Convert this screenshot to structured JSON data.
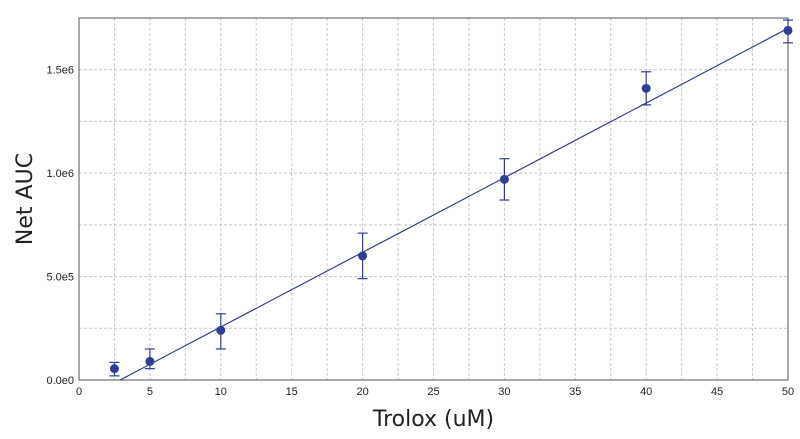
{
  "colors": {
    "series": "#2e3f93",
    "grid": "#c8c8c8",
    "axis": "#555555",
    "text": "#222222",
    "background": "#ffffff"
  },
  "chart_data": {
    "type": "scatter",
    "title": "",
    "xlabel": "Trolox (uM)",
    "ylabel": "Net AUC",
    "xlim": [
      0,
      50
    ],
    "ylim": [
      0,
      1750000
    ],
    "x_ticks": [
      0,
      5,
      10,
      15,
      20,
      25,
      30,
      35,
      40,
      45,
      50
    ],
    "x_tick_labels": [
      "0",
      "5",
      "10",
      "15",
      "20",
      "25",
      "30",
      "35",
      "40",
      "45",
      "50"
    ],
    "y_ticks": [
      0,
      500000,
      1000000,
      1500000
    ],
    "y_tick_labels": [
      "0.0e0",
      "5.0e5",
      "1.0e6",
      "1.5e6"
    ],
    "x_minor_step": 2.5,
    "y_minor_step": 250000,
    "grid": true,
    "series": [
      {
        "x": [
          2.5,
          5,
          10,
          20,
          30,
          40,
          50
        ],
        "y": [
          55000,
          90000,
          240000,
          600000,
          970000,
          1410000,
          1690000
        ],
        "err_low": [
          20000,
          55000,
          150000,
          490000,
          870000,
          1330000,
          1630000
        ],
        "err_high": [
          85000,
          150000,
          320000,
          710000,
          1070000,
          1490000,
          1740000
        ]
      }
    ],
    "fit_line": {
      "x": [
        2.9,
        50
      ],
      "y": [
        0,
        1700000
      ]
    }
  }
}
